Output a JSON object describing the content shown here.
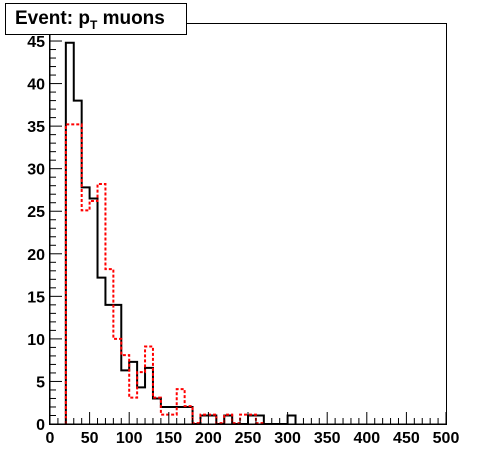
{
  "chart_data": {
    "type": "histogram",
    "title": {
      "prefix": "Event: p",
      "subscript": "T",
      "suffix": " muons"
    },
    "xlim": [
      0,
      500
    ],
    "ylim": [
      0,
      47
    ],
    "bin_width": 10,
    "x_ticks": [
      0,
      50,
      100,
      150,
      200,
      250,
      300,
      350,
      400,
      450,
      500
    ],
    "x_tick_labels": [
      "0",
      "50",
      "100",
      "150",
      "200",
      "250",
      "300",
      "350",
      "400",
      "450",
      "500"
    ],
    "y_ticks": [
      0,
      5,
      10,
      15,
      20,
      25,
      30,
      35,
      40,
      45
    ],
    "y_tick_labels": [
      "0",
      "5",
      "10",
      "15",
      "20",
      "25",
      "30",
      "35",
      "40",
      "45"
    ],
    "grid": false,
    "series": [
      {
        "style": "solid",
        "color": "#000000",
        "bin_edges": [
          20,
          30,
          40,
          50,
          60,
          70,
          80,
          90,
          100,
          110,
          120,
          130,
          140,
          150,
          160,
          170,
          180,
          190,
          200,
          210,
          220,
          230,
          240,
          250,
          260,
          270,
          280,
          290,
          300,
          310
        ],
        "values": [
          44.8,
          38,
          27.8,
          26.5,
          17.2,
          14,
          14,
          6.3,
          7.3,
          4.3,
          6.6,
          3,
          2,
          2,
          2,
          2,
          0,
          1,
          1,
          0,
          1,
          0,
          0,
          1,
          1,
          0,
          0,
          0,
          1
        ]
      },
      {
        "style": "dashed",
        "color": "#ff0000",
        "bin_edges": [
          20,
          30,
          40,
          50,
          60,
          70,
          80,
          90,
          100,
          110,
          120,
          130,
          140,
          150,
          160,
          170,
          180,
          190,
          200,
          210,
          220,
          230,
          240,
          250,
          260,
          270
        ],
        "values": [
          35.2,
          35.2,
          25.1,
          26.2,
          28.2,
          18.2,
          10,
          8.1,
          3.1,
          6.1,
          9.1,
          3.1,
          1.1,
          1.1,
          4.1,
          2.1,
          0.1,
          1.1,
          1.1,
          0.1,
          1.1,
          0.1,
          1.1,
          1.1,
          0.1
        ]
      }
    ]
  }
}
